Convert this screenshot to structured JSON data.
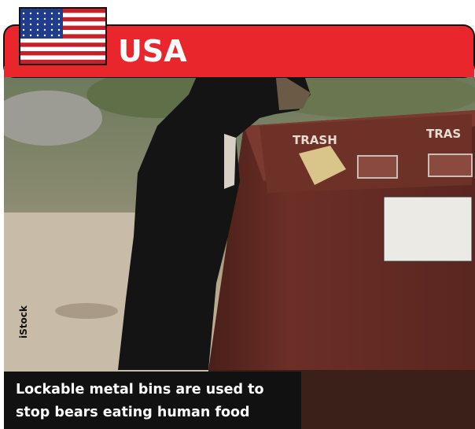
{
  "header": {
    "label": "USA"
  },
  "image": {
    "credit": "iStock",
    "bin_labels": [
      "TRASH",
      "TRAS"
    ]
  },
  "caption": {
    "lines": [
      "Lockable metal bins are used to",
      "stop bears eating human food"
    ]
  }
}
